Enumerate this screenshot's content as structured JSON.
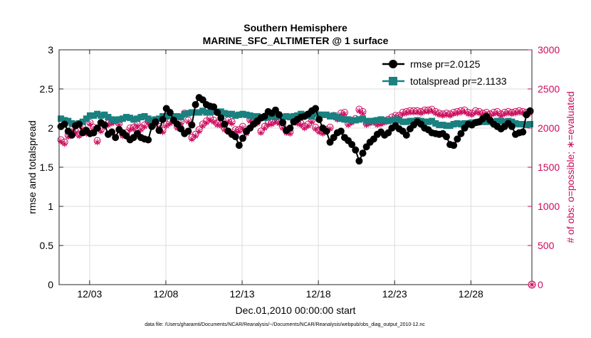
{
  "chart_data": {
    "type": "line",
    "title_line1": "Southern Hemisphere",
    "title_line2": "MARINE_SFC_ALTIMETER @ 1 surface",
    "xlabel": "Dec.01,2010 00:00:00 start",
    "ylabel_left": "rmse and totalspread",
    "ylabel_right": "# of obs: o=possible; ∗=evaluated",
    "footnote": "data file: /Users/gharamti/Documents/NCAR/Reanalysis/~/Documents/NCAR/Reanalysis/webpub/obs_diag_output_2010-12.nc",
    "xlim": [
      1.0,
      32.0
    ],
    "ylim_left": [
      0,
      3
    ],
    "ylim_right": [
      0,
      3000
    ],
    "x_ticks": [
      3,
      8,
      13,
      18,
      23,
      28
    ],
    "x_tick_labels": [
      "12/03",
      "12/08",
      "12/13",
      "12/18",
      "12/23",
      "12/28"
    ],
    "y_ticks_left": [
      "0",
      "0.5",
      "1",
      "1.5",
      "2",
      "2.5",
      "3"
    ],
    "y_ticks_right": [
      "0",
      "500",
      "1000",
      "1500",
      "2000",
      "2500",
      "3000"
    ],
    "grid": true,
    "legend_position": "top-right",
    "colors": {
      "rmse": "#000000",
      "totalspread": "#1a8080",
      "obs": "#cc0a5c"
    },
    "series": [
      {
        "name": "rmse pr=2.0125",
        "axis": "left",
        "values": [
          2.02,
          2.05,
          1.96,
          1.91,
          2.03,
          2.05,
          1.94,
          1.97,
          1.93,
          1.94,
          2.0,
          2.07,
          2.04,
          1.92,
          1.95,
          1.88,
          1.98,
          1.94,
          1.9,
          1.85,
          1.88,
          1.93,
          1.88,
          1.86,
          1.85,
          2.02,
          2.08,
          1.97,
          2.11,
          2.25,
          2.2,
          2.1,
          2.05,
          1.99,
          1.93,
          1.96,
          2.04,
          2.3,
          2.39,
          2.36,
          2.3,
          2.28,
          2.27,
          2.2,
          2.13,
          2.05,
          1.96,
          1.92,
          1.89,
          1.78,
          1.87,
          1.96,
          2.0,
          2.05,
          2.09,
          2.13,
          2.15,
          2.21,
          2.19,
          2.23,
          2.17,
          2.07,
          1.97,
          2.0,
          2.08,
          2.11,
          2.14,
          2.15,
          2.18,
          2.22,
          2.25,
          2.11,
          2.0,
          1.96,
          1.82,
          1.88,
          1.94,
          1.96,
          1.88,
          1.84,
          1.79,
          1.72,
          1.58,
          1.68,
          1.76,
          1.82,
          1.86,
          1.92,
          1.95,
          1.91,
          1.94,
          2.0,
          2.03,
          1.99,
          1.96,
          1.91,
          1.99,
          2.04,
          2.08,
          2.05,
          2.0,
          1.98,
          1.94,
          1.93,
          1.92,
          1.93,
          1.89,
          1.79,
          1.78,
          1.86,
          1.93,
          2.0,
          2.05,
          2.04,
          2.07,
          2.08,
          2.12,
          2.15,
          2.1,
          2.05,
          2.02,
          1.99,
          2.02,
          2.06,
          2.02,
          1.92,
          1.94,
          1.95,
          2.17,
          2.22
        ]
      },
      {
        "name": "totalspread pr=2.1133",
        "axis": "left",
        "values": [
          2.12,
          2.1,
          2.09,
          2.06,
          2.05,
          2.06,
          2.08,
          2.12,
          2.16,
          2.16,
          2.18,
          2.16,
          2.17,
          2.14,
          2.11,
          2.1,
          2.11,
          2.12,
          2.14,
          2.13,
          2.11,
          2.12,
          2.14,
          2.15,
          2.12,
          2.1,
          2.11,
          2.12,
          2.15,
          2.15,
          2.16,
          2.15,
          2.15,
          2.14,
          2.18,
          2.19,
          2.2,
          2.2,
          2.2,
          2.22,
          2.2,
          2.2,
          2.21,
          2.21,
          2.21,
          2.19,
          2.18,
          2.18,
          2.16,
          2.17,
          2.18,
          2.17,
          2.16,
          2.15,
          2.15,
          2.14,
          2.13,
          2.14,
          2.16,
          2.14,
          2.15,
          2.14,
          2.15,
          2.14,
          2.15,
          2.16,
          2.18,
          2.17,
          2.16,
          2.15,
          2.18,
          2.17,
          2.17,
          2.17,
          2.15,
          2.16,
          2.14,
          2.12,
          2.11,
          2.11,
          2.1,
          2.1,
          2.11,
          2.12,
          2.09,
          2.09,
          2.09,
          2.1,
          2.11,
          2.1,
          2.09,
          2.1,
          2.11,
          2.1,
          2.08,
          2.08,
          2.09,
          2.09,
          2.1,
          2.09,
          2.08,
          2.08,
          2.09,
          2.06,
          2.04,
          2.04,
          2.03,
          2.03,
          2.05,
          2.06,
          2.05,
          2.06,
          2.06,
          2.07,
          2.07,
          2.08,
          2.08,
          2.08,
          2.08,
          2.08,
          2.09,
          2.09,
          2.08,
          2.09,
          2.08,
          2.06,
          2.05,
          2.05,
          2.04,
          2.05
        ]
      },
      {
        "name": "obs possible",
        "axis": "right",
        "values": [
          1850,
          1820,
          1910,
          1980,
          1960,
          1920,
          2010,
          1950,
          2070,
          2010,
          1840,
          1980,
          2040,
          2060,
          2080,
          2100,
          2060,
          1920,
          1940,
          2000,
          2010,
          2050,
          2000,
          2040,
          2090,
          2060,
          2070,
          2020,
          1970,
          2050,
          2080,
          2100,
          2020,
          2080,
          2190,
          2100,
          1880,
          1920,
          1980,
          2050,
          2090,
          2130,
          2100,
          2060,
          2050,
          2000,
          2100,
          2080,
          1980,
          1980,
          2020,
          1950,
          2110,
          2100,
          2080,
          1960,
          2020,
          2060,
          2070,
          2100,
          2080,
          2020,
          1960,
          1950,
          2100,
          2080,
          2060,
          2020,
          2050,
          2100,
          2010,
          1970,
          1950,
          1980,
          2010,
          2160,
          2130,
          2190,
          2200,
          2060,
          2090,
          2120,
          2240,
          2210,
          2060,
          2080,
          2090,
          2060,
          2070,
          2090,
          2110,
          2140,
          2160,
          2160,
          2200,
          2210,
          2220,
          2220,
          2220,
          2210,
          2230,
          2230,
          2240,
          2210,
          2190,
          2180,
          2190,
          2180,
          2200,
          2210,
          2220,
          2230,
          2200,
          2190,
          2220,
          2210,
          2190,
          2200,
          2180,
          2200,
          2210,
          2180,
          2200,
          2210,
          2200,
          2210,
          2220,
          2210,
          2200,
          2210
        ]
      },
      {
        "name": "obs evaluated",
        "axis": "right",
        "values": [
          1830,
          1800,
          1890,
          1960,
          1940,
          1900,
          1990,
          1930,
          2050,
          1990,
          1820,
          1960,
          2020,
          2040,
          2060,
          2080,
          2040,
          1900,
          1920,
          1980,
          1990,
          2030,
          1980,
          2020,
          2070,
          2040,
          2050,
          2000,
          1950,
          2030,
          2060,
          2080,
          2000,
          2060,
          2170,
          2080,
          1860,
          1900,
          1960,
          2030,
          2070,
          2110,
          2080,
          2040,
          2030,
          1980,
          2080,
          2060,
          1960,
          1960,
          2000,
          1930,
          2090,
          2080,
          2060,
          1940,
          2000,
          2040,
          2050,
          2080,
          2060,
          2000,
          1940,
          1930,
          2080,
          2060,
          2040,
          2000,
          2030,
          2080,
          1990,
          1950,
          1930,
          1960,
          1990,
          2140,
          2110,
          2170,
          2180,
          2040,
          2070,
          2100,
          2220,
          2190,
          2040,
          2060,
          2070,
          2040,
          2050,
          2070,
          2090,
          2120,
          2140,
          2140,
          2180,
          2190,
          2200,
          2200,
          2200,
          2190,
          2210,
          2210,
          2220,
          2190,
          2170,
          2160,
          2170,
          2160,
          2180,
          2190,
          2200,
          2210,
          2180,
          2170,
          2200,
          2190,
          2170,
          2180,
          2160,
          2180,
          2190,
          2160,
          2180,
          2190,
          2180,
          2190,
          2200,
          2190,
          2180,
          2190
        ]
      }
    ],
    "right_axis_zero_marker": "0"
  }
}
